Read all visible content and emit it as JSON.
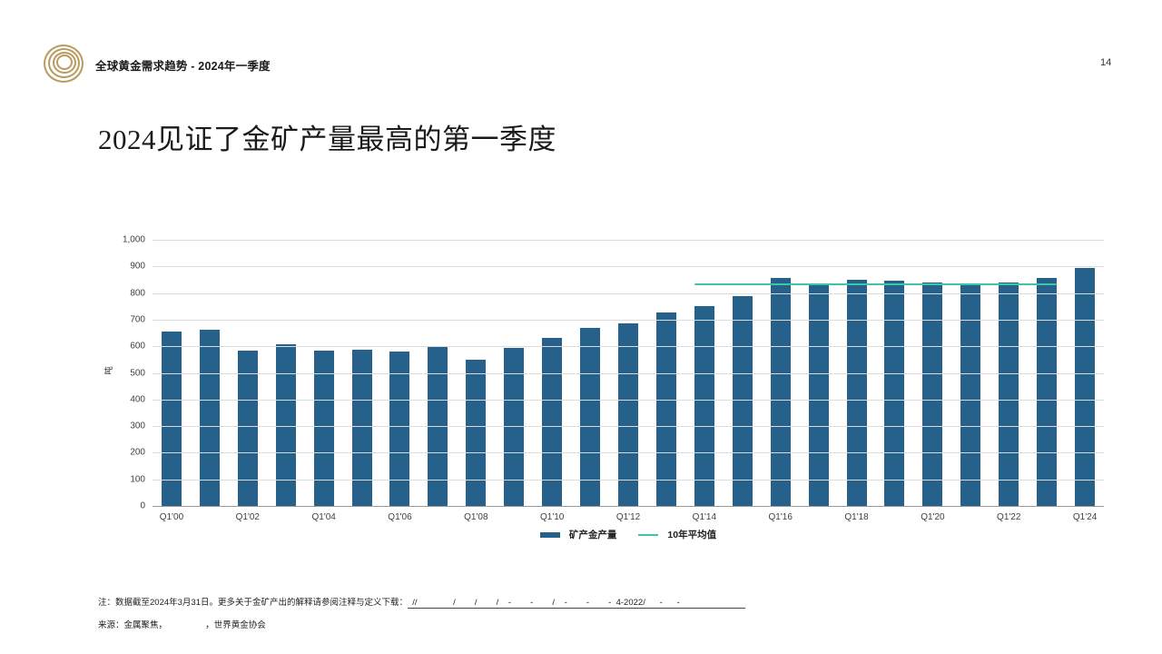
{
  "page": {
    "number": "14"
  },
  "header": {
    "title": "全球黄金需求趋势 - 2024年一季度"
  },
  "main_title": "2024见证了金矿产量最高的第一季度",
  "colors": {
    "bar": "#26618C",
    "avg_line": "#3EC4A7",
    "logo_gold": "#B89B5E",
    "gridline": "#DCDCDC",
    "axis": "#9A9A9A"
  },
  "chart_data": {
    "type": "bar",
    "title": "",
    "xlabel": "",
    "ylabel": "吨",
    "ylim": [
      0,
      1000
    ],
    "y_ticks": [
      0,
      100,
      200,
      300,
      400,
      500,
      600,
      700,
      800,
      900,
      1000
    ],
    "y_tick_labels": [
      "0",
      "100",
      "200",
      "300",
      "400",
      "500",
      "600",
      "700",
      "800",
      "900",
      "1,000"
    ],
    "grid": true,
    "legend_position": "bottom",
    "categories": [
      "Q1'00",
      "Q1'01",
      "Q1'02",
      "Q1'03",
      "Q1'04",
      "Q1'05",
      "Q1'06",
      "Q1'07",
      "Q1'08",
      "Q1'09",
      "Q1'10",
      "Q1'11",
      "Q1'12",
      "Q1'13",
      "Q1'14",
      "Q1'15",
      "Q1'16",
      "Q1'17",
      "Q1'18",
      "Q1'19",
      "Q1'20",
      "Q1'21",
      "Q1'22",
      "Q1'23",
      "Q1'24"
    ],
    "x_tick_labels": [
      "Q1'00",
      "Q1'02",
      "Q1'04",
      "Q1'06",
      "Q1'08",
      "Q1'10",
      "Q1'12",
      "Q1'14",
      "Q1'16",
      "Q1'18",
      "Q1'20",
      "Q1'22",
      "Q1'24"
    ],
    "series": [
      {
        "name": "矿产金产量",
        "type": "bar",
        "color": "#26618C",
        "values": [
          655,
          662,
          583,
          609,
          583,
          588,
          579,
          597,
          550,
          594,
          633,
          669,
          686,
          728,
          750,
          790,
          857,
          834,
          851,
          846,
          840,
          831,
          839,
          856,
          893
        ]
      },
      {
        "name": "10年平均值",
        "type": "line",
        "color": "#3EC4A7",
        "value": 833,
        "span": [
          "Q1'14",
          "Q1'23"
        ]
      }
    ]
  },
  "footnote": {
    "note": "注：数据截至2024年3月31日。更多关于金矿产出的解释请参阅注释与定义下载：",
    "redacted_link": "  //               /        /        /    -        -        /    -        -        -  4-2022/      -      -      ",
    "source": "来源：金属聚焦，                ，世界黄金协会"
  }
}
